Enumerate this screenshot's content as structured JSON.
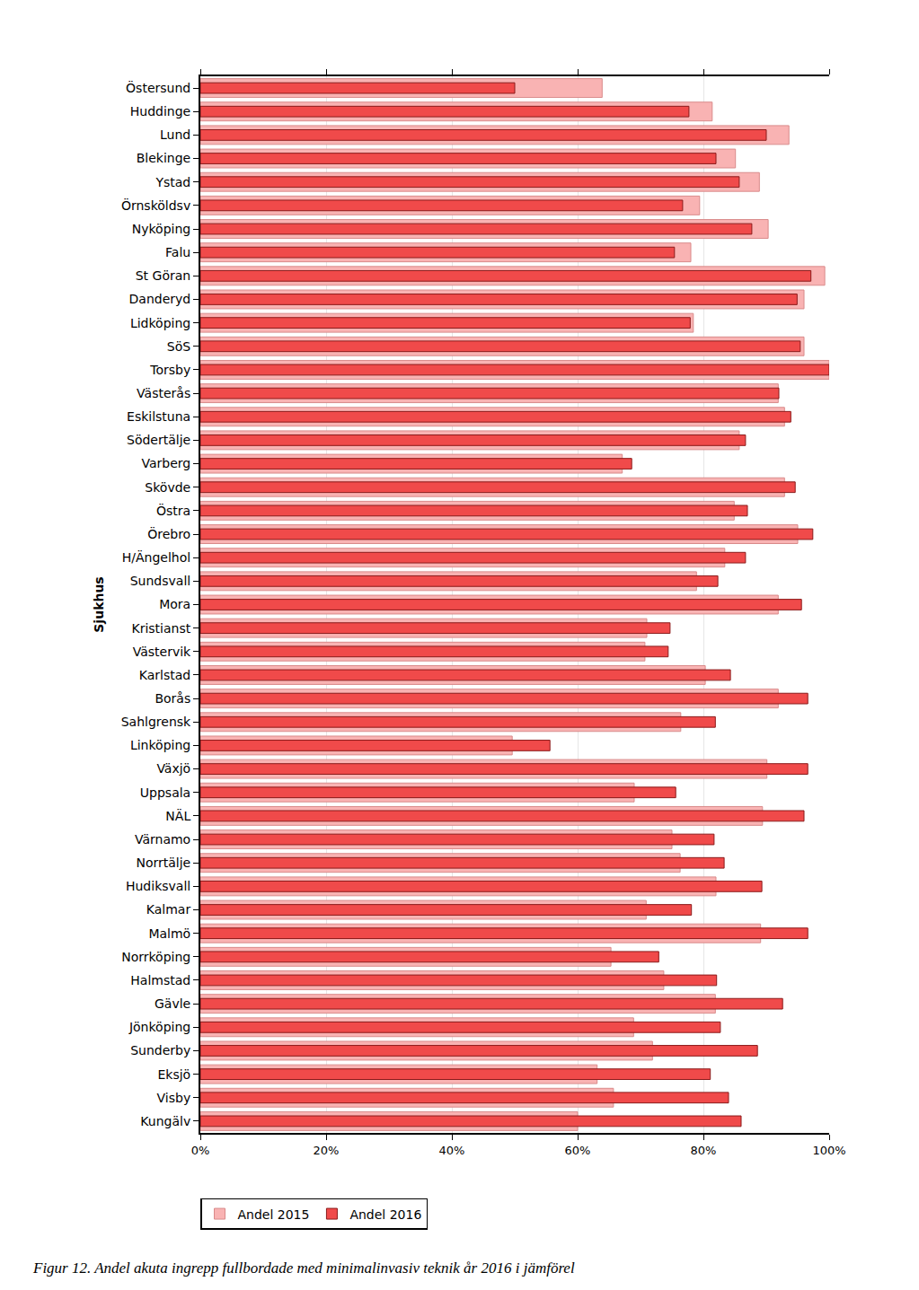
{
  "chart_data": {
    "type": "bar",
    "orientation": "horizontal",
    "title": "Figur 12. Andel akuta ingrepp fullbordade med minimalinvasiv teknik år 2016 i jämförel",
    "y_label": "Sjukhus",
    "categories": [
      "Östersund",
      "Huddinge",
      "Lund",
      "Blekinge",
      "Ystad",
      "Örnsköldsv",
      "Nyköping",
      "Falu",
      "St Göran",
      "Danderyd",
      "Lidköping",
      "SöS",
      "Torsby",
      "Västerås",
      "Eskilstuna",
      "Södertälje",
      "Varberg",
      "Skövde",
      "Östra",
      "Örebro",
      "H/Ängelhol",
      "Sundsvall",
      "Mora",
      "Kristianst",
      "Västervik",
      "Karlstad",
      "Borås",
      "Sahlgrensk",
      "Linköping",
      "Växjö",
      "Uppsala",
      "NÄL",
      "Värnamo",
      "Norrtälje",
      "Hudiksvall",
      "Kalmar",
      "Malmö",
      "Norrköping",
      "Halmstad",
      "Gävle",
      "Jönköping",
      "Sunderby",
      "Eksjö",
      "Visby",
      "Kungälv"
    ],
    "series": [
      {
        "name": "Andel 2015",
        "color": "#f9b3b3",
        "values": [
          63.9,
          81.4,
          93.6,
          85.1,
          88.9,
          79.4,
          90.3,
          78.0,
          99.3,
          96.0,
          78.4,
          96.0,
          100.0,
          91.9,
          92.9,
          85.7,
          67.1,
          92.9,
          84.9,
          95.0,
          83.4,
          78.9,
          91.9,
          71.0,
          70.7,
          80.3,
          91.9,
          76.4,
          49.6,
          90.1,
          69.0,
          89.4,
          75.0,
          76.3,
          82.0,
          70.9,
          89.1,
          65.3,
          73.7,
          81.9,
          68.9,
          71.9,
          63.1,
          65.7,
          60.0
        ]
      },
      {
        "name": "Andel 2016",
        "color": "#f04a4a",
        "values": [
          50.0,
          77.7,
          90.0,
          82.0,
          85.7,
          76.7,
          87.7,
          75.4,
          97.1,
          94.9,
          77.9,
          95.4,
          100.0,
          92.0,
          93.9,
          86.7,
          68.6,
          94.6,
          87.0,
          97.4,
          86.7,
          82.3,
          95.6,
          74.7,
          74.4,
          84.3,
          96.6,
          81.9,
          55.6,
          96.6,
          75.6,
          96.0,
          81.7,
          83.3,
          89.3,
          78.1,
          96.6,
          72.9,
          82.1,
          92.6,
          82.7,
          88.6,
          81.1,
          84.0,
          86.0
        ]
      }
    ],
    "xlim": [
      0,
      100
    ],
    "xticks": [
      {
        "value": 0,
        "label": "0%"
      },
      {
        "value": 20,
        "label": "20%"
      },
      {
        "value": 40,
        "label": "40%"
      },
      {
        "value": 60,
        "label": "60%"
      },
      {
        "value": 80,
        "label": "80%"
      },
      {
        "value": 100,
        "label": "100%"
      }
    ],
    "grid": true,
    "legend": "bottom left"
  }
}
